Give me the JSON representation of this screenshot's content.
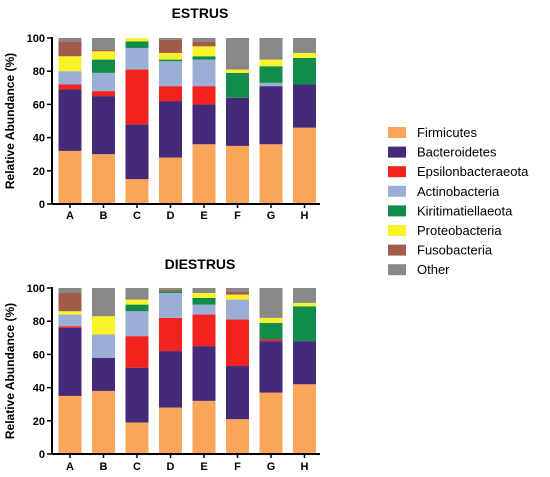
{
  "chart_data": [
    {
      "type": "bar",
      "stacked": true,
      "title": "ESTRUS",
      "ylabel": "Relative Abundance (%)",
      "ylim": [
        0,
        100
      ],
      "yticks": [
        0,
        20,
        40,
        60,
        80,
        100
      ],
      "categories": [
        "A",
        "B",
        "C",
        "D",
        "E",
        "F",
        "G",
        "H"
      ],
      "series": [
        {
          "name": "Firmicutes",
          "values": [
            32,
            30,
            15,
            28,
            36,
            35,
            36,
            46
          ]
        },
        {
          "name": "Bacteroidetes",
          "values": [
            37,
            35,
            33,
            34,
            24,
            29,
            35,
            26
          ]
        },
        {
          "name": "Epsilonbacteraeota",
          "values": [
            3,
            3,
            33,
            9,
            11,
            0,
            0,
            0
          ]
        },
        {
          "name": "Actinobacteria",
          "values": [
            8,
            11,
            13,
            15,
            16,
            0,
            2,
            0
          ]
        },
        {
          "name": "Kiritimatiellaeota",
          "values": [
            0,
            8,
            4,
            1,
            2,
            15,
            10,
            16
          ]
        },
        {
          "name": "Proteobacteria",
          "values": [
            9,
            5,
            2,
            4,
            6,
            2,
            4,
            3
          ]
        },
        {
          "name": "Fusobacteria",
          "values": [
            9,
            1,
            0,
            8,
            3,
            0,
            0,
            0
          ]
        },
        {
          "name": "Other",
          "values": [
            2,
            7,
            0,
            1,
            2,
            19,
            13,
            9
          ]
        }
      ]
    },
    {
      "type": "bar",
      "stacked": true,
      "title": "DIESTRUS",
      "ylabel": "Relative Abundance (%)",
      "ylim": [
        0,
        100
      ],
      "yticks": [
        0,
        20,
        40,
        60,
        80,
        100
      ],
      "categories": [
        "A",
        "B",
        "C",
        "D",
        "E",
        "F",
        "G",
        "H"
      ],
      "series": [
        {
          "name": "Firmicutes",
          "values": [
            35,
            38,
            19,
            28,
            32,
            21,
            37,
            42
          ]
        },
        {
          "name": "Bacteroidetes",
          "values": [
            41,
            20,
            33,
            34,
            33,
            32,
            31,
            26
          ]
        },
        {
          "name": "Epsilonbacteraeota",
          "values": [
            1,
            0,
            19,
            20,
            19,
            28,
            1,
            0
          ]
        },
        {
          "name": "Actinobacteria",
          "values": [
            7,
            14,
            15,
            15,
            6,
            12,
            0,
            0
          ]
        },
        {
          "name": "Kiritimatiellaeota",
          "values": [
            0,
            0,
            4,
            1,
            4,
            0,
            10,
            21
          ]
        },
        {
          "name": "Proteobacteria",
          "values": [
            2,
            11,
            3,
            0,
            3,
            3,
            3,
            2
          ]
        },
        {
          "name": "Fusobacteria",
          "values": [
            11,
            0,
            0,
            1,
            0,
            2,
            0,
            0
          ]
        },
        {
          "name": "Other",
          "values": [
            3,
            17,
            7,
            1,
            3,
            2,
            18,
            9
          ]
        }
      ]
    }
  ],
  "legend": {
    "placement": "right",
    "items": [
      {
        "label": "Firmicutes",
        "color": "#f9a65a"
      },
      {
        "label": "Bacteroidetes",
        "color": "#452a7a"
      },
      {
        "label": "Epsilonbacteraeota",
        "color": "#f2231e"
      },
      {
        "label": "Actinobacteria",
        "color": "#9aaed6"
      },
      {
        "label": "Kiritimatiellaeota",
        "color": "#118c4c"
      },
      {
        "label": "Proteobacteria",
        "color": "#faf32a"
      },
      {
        "label": "Fusobacteria",
        "color": "#a15c4a"
      },
      {
        "label": "Other",
        "color": "#888888"
      }
    ]
  }
}
